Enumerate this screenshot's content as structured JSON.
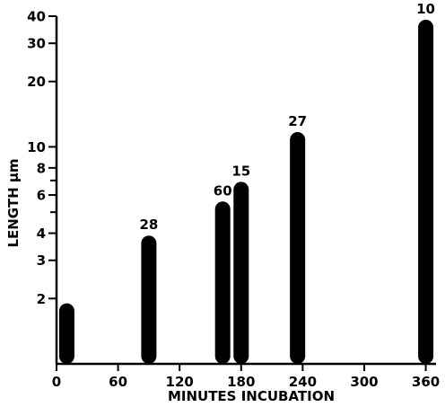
{
  "chart_data": {
    "type": "bar",
    "title": "",
    "xlabel": "MINUTES INCUBATION",
    "ylabel": "LENGTH µm",
    "x_scale": "linear",
    "y_scale": "log",
    "xlim": [
      0,
      370
    ],
    "ylim": [
      1,
      40
    ],
    "x_ticks": [
      0,
      60,
      120,
      180,
      240,
      300,
      360
    ],
    "x_tick_labels": [
      "0",
      "60",
      "120",
      "180",
      "240",
      "300",
      "360"
    ],
    "y_ticks": [
      2,
      3,
      4,
      6,
      8,
      10,
      20,
      30,
      40
    ],
    "y_tick_labels": [
      "2",
      "3",
      "4",
      "6",
      "8",
      "10",
      "20",
      "30",
      "40"
    ],
    "y_minor_ticks": [
      5,
      7
    ],
    "grid": false,
    "bars": [
      {
        "x": 10,
        "value": 1.9,
        "label": ""
      },
      {
        "x": 90,
        "value": 3.9,
        "label": "28"
      },
      {
        "x": 162,
        "value": 5.6,
        "label": "60"
      },
      {
        "x": 180,
        "value": 6.9,
        "label": "15"
      },
      {
        "x": 235,
        "value": 11.7,
        "label": "27"
      },
      {
        "x": 360,
        "value": 38.5,
        "label": "10"
      }
    ],
    "colors": {
      "bar": "#000000",
      "axis": "#000000"
    }
  }
}
